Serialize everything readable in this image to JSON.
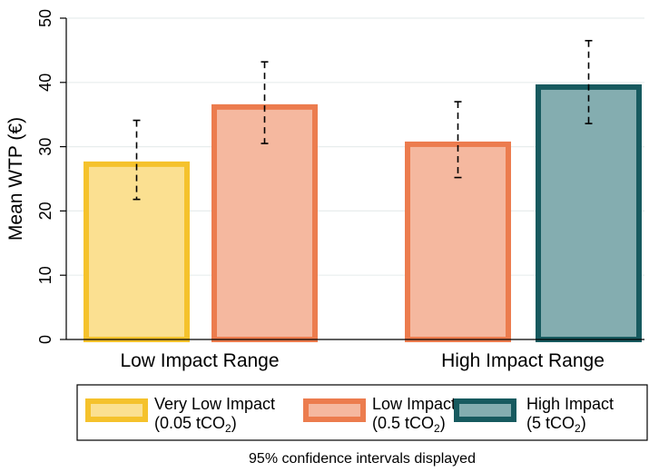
{
  "chart_data": {
    "type": "bar",
    "ylabel": "Mean WTP (€)",
    "ylim": [
      0,
      50
    ],
    "yticks": [
      0,
      10,
      20,
      30,
      40,
      50
    ],
    "grid": true,
    "legend_placement": "bottom",
    "note": "95% confidence intervals displayed",
    "groups": [
      {
        "label": "Low Impact Range",
        "bars": [
          {
            "series": "Very Low Impact",
            "value": 27.7,
            "ci_low": 21.8,
            "ci_high": 34.1
          },
          {
            "series": "Low Impact",
            "value": 36.6,
            "ci_low": 30.5,
            "ci_high": 43.2
          }
        ]
      },
      {
        "label": "High Impact Range",
        "bars": [
          {
            "series": "Low Impact",
            "value": 30.8,
            "ci_low": 25.2,
            "ci_high": 37.0
          },
          {
            "series": "High Impact",
            "value": 39.7,
            "ci_low": 33.6,
            "ci_high": 46.5
          }
        ]
      }
    ],
    "series": [
      {
        "name": "Very Low Impact",
        "sub_main": "(0.05 tCO",
        "sub_sub": "2",
        "sub_tail": ")",
        "fill": "#fbe091",
        "stroke": "#f5c22c"
      },
      {
        "name": "Low Impact",
        "sub_main": "(0.5 tCO",
        "sub_sub": "2",
        "sub_tail": ")",
        "fill": "#f5b89f",
        "stroke": "#ec7c4e"
      },
      {
        "name": "High Impact",
        "sub_main": "(5 tCO",
        "sub_sub": "2",
        "sub_tail": ")",
        "fill": "#84adb0",
        "stroke": "#175a5f"
      }
    ]
  }
}
